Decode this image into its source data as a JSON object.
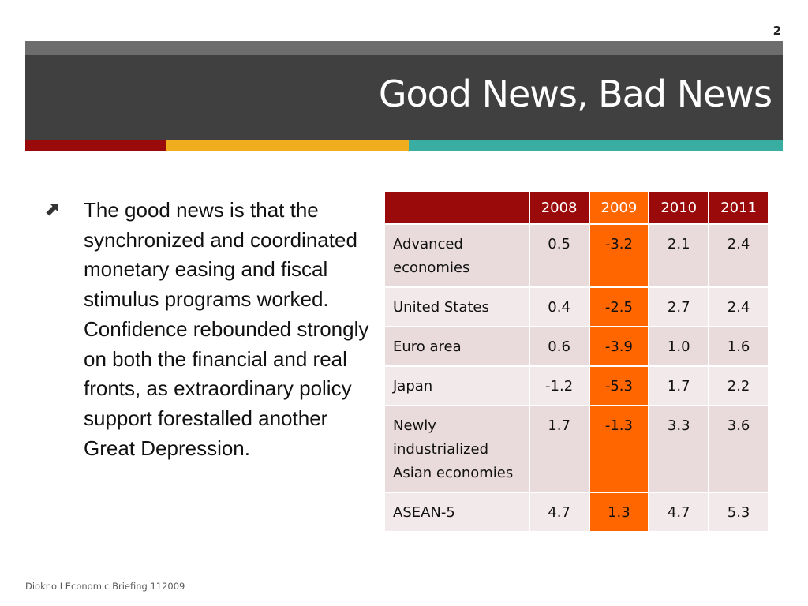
{
  "slide": {
    "page_number": "2",
    "title": "Good News, Bad News",
    "footer": "Diokno I Economic Briefing 112009"
  },
  "bullet": {
    "icon": "arrow-up-right-icon",
    "text": "The good news is that the synchronized and coordinated monetary easing and  fiscal stimulus programs worked. Confidence rebounded strongly on both the financial and real fronts, as extraordinary policy support forestalled another Great Depression."
  },
  "colors": {
    "title_band": "#404040",
    "header_red": "#9b0a0a",
    "highlight_orange": "#ff6600",
    "stripe_gold": "#f0ae1e",
    "stripe_teal": "#3aada3",
    "row_pink": "#e9dadb"
  },
  "table": {
    "headers": [
      "",
      "2008",
      "2009",
      "2010",
      "2011"
    ],
    "rows": [
      {
        "label": "Advanced economies",
        "values": [
          "0.5",
          "-3.2",
          "2.1",
          "2.4"
        ]
      },
      {
        "label": "United States",
        "values": [
          "0.4",
          "-2.5",
          "2.7",
          "2.4"
        ]
      },
      {
        "label": "Euro area",
        "values": [
          "0.6",
          "-3.9",
          "1.0",
          "1.6"
        ]
      },
      {
        "label": "Japan",
        "values": [
          "-1.2",
          "-5.3",
          "1.7",
          "2.2"
        ]
      },
      {
        "label": "Newly industrialized Asian economies",
        "values": [
          "1.7",
          "-1.3",
          "3.3",
          "3.6"
        ]
      },
      {
        "label": "ASEAN-5",
        "values": [
          "4.7",
          "1.3",
          "4.7",
          "5.3"
        ]
      }
    ]
  }
}
